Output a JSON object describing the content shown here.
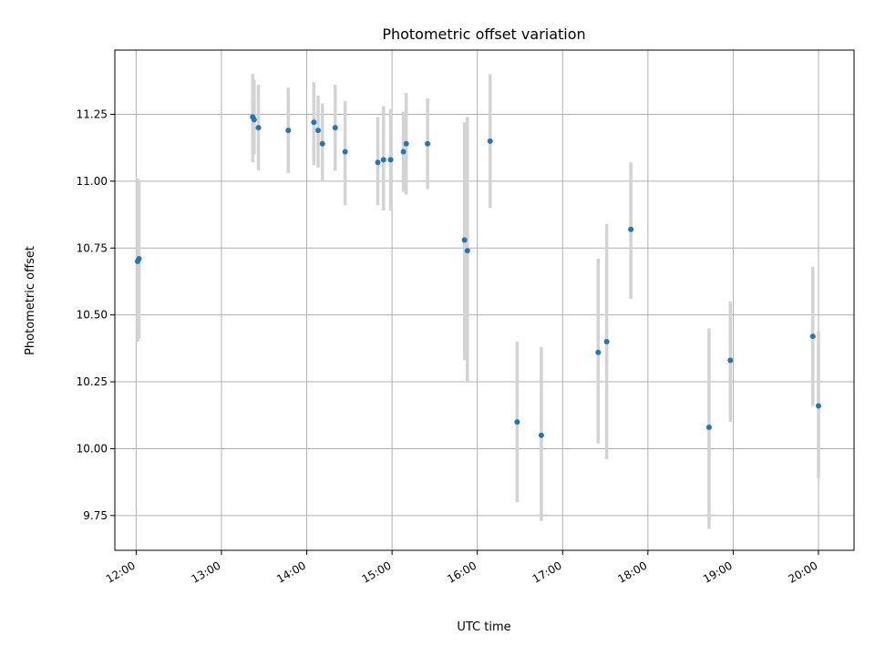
{
  "chart_data": {
    "type": "scatter",
    "title": "Photometric offset variation",
    "xlabel": "UTC time",
    "ylabel": "Photometric offset",
    "xlim": [
      "11:45",
      "20:25"
    ],
    "ylim": [
      9.62,
      11.49
    ],
    "x_ticks": [
      "12:00",
      "13:00",
      "14:00",
      "15:00",
      "16:00",
      "17:00",
      "18:00",
      "19:00",
      "20:00"
    ],
    "y_ticks": [
      "9.75",
      "10.00",
      "10.25",
      "10.50",
      "10.75",
      "11.00",
      "11.25"
    ],
    "grid": true,
    "colors": {
      "point": "#1f77b4",
      "errorbar": "#d3d3d3",
      "grid": "#b0b0b0"
    },
    "points": [
      {
        "x": "12:01",
        "y": 10.7,
        "lo": 10.4,
        "hi": 11.01
      },
      {
        "x": "12:02",
        "y": 10.71,
        "lo": 10.41,
        "hi": 11.0
      },
      {
        "x": "13:22",
        "y": 11.24,
        "lo": 11.07,
        "hi": 11.4
      },
      {
        "x": "13:23",
        "y": 11.23,
        "lo": 11.1,
        "hi": 11.38
      },
      {
        "x": "13:26",
        "y": 11.2,
        "lo": 11.04,
        "hi": 11.36
      },
      {
        "x": "13:47",
        "y": 11.19,
        "lo": 11.03,
        "hi": 11.35
      },
      {
        "x": "14:05",
        "y": 11.22,
        "lo": 11.06,
        "hi": 11.37
      },
      {
        "x": "14:08",
        "y": 11.19,
        "lo": 11.05,
        "hi": 11.32
      },
      {
        "x": "14:11",
        "y": 11.14,
        "lo": 11.0,
        "hi": 11.29
      },
      {
        "x": "14:20",
        "y": 11.2,
        "lo": 11.04,
        "hi": 11.36
      },
      {
        "x": "14:27",
        "y": 11.11,
        "lo": 10.91,
        "hi": 11.3
      },
      {
        "x": "14:50",
        "y": 11.07,
        "lo": 10.91,
        "hi": 11.24
      },
      {
        "x": "14:54",
        "y": 11.08,
        "lo": 10.89,
        "hi": 11.28
      },
      {
        "x": "14:59",
        "y": 11.08,
        "lo": 10.89,
        "hi": 11.27
      },
      {
        "x": "15:08",
        "y": 11.11,
        "lo": 10.96,
        "hi": 11.26
      },
      {
        "x": "15:10",
        "y": 11.14,
        "lo": 10.95,
        "hi": 11.33
      },
      {
        "x": "15:25",
        "y": 11.14,
        "lo": 10.97,
        "hi": 11.31
      },
      {
        "x": "15:51",
        "y": 10.78,
        "lo": 10.33,
        "hi": 11.22
      },
      {
        "x": "15:53",
        "y": 10.74,
        "lo": 10.25,
        "hi": 11.24
      },
      {
        "x": "16:09",
        "y": 11.15,
        "lo": 10.9,
        "hi": 11.4
      },
      {
        "x": "16:28",
        "y": 10.1,
        "lo": 9.8,
        "hi": 10.4
      },
      {
        "x": "16:45",
        "y": 10.05,
        "lo": 9.73,
        "hi": 10.38
      },
      {
        "x": "17:25",
        "y": 10.36,
        "lo": 10.02,
        "hi": 10.71
      },
      {
        "x": "17:31",
        "y": 10.4,
        "lo": 9.96,
        "hi": 10.84
      },
      {
        "x": "17:48",
        "y": 10.82,
        "lo": 10.56,
        "hi": 11.07
      },
      {
        "x": "18:43",
        "y": 10.08,
        "lo": 9.7,
        "hi": 10.45
      },
      {
        "x": "18:58",
        "y": 10.33,
        "lo": 10.1,
        "hi": 10.55
      },
      {
        "x": "19:56",
        "y": 10.42,
        "lo": 10.16,
        "hi": 10.68
      },
      {
        "x": "20:00",
        "y": 10.16,
        "lo": 9.89,
        "hi": 10.44
      }
    ]
  }
}
